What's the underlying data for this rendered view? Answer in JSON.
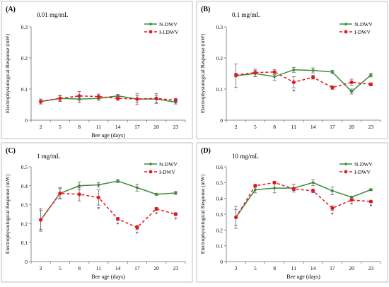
{
  "colors": {
    "n_dwv": "#3d8b37",
    "i_dwv": "#e8141b",
    "axis": "#8c8c8c",
    "frame": "#bfbfbf"
  },
  "chart_data": [
    {
      "type": "line",
      "panel_label": "(A)",
      "title": "0.01 mg/mL",
      "xlabel": "Bee age (days)",
      "ylabel": "Electrophysiological Response (mW)",
      "x": [
        2,
        5,
        8,
        11,
        14,
        17,
        20,
        23
      ],
      "x_ticks": [
        "2",
        "5",
        "8",
        "11",
        "14",
        "17",
        "20",
        "23"
      ],
      "ylim": [
        0,
        0.3
      ],
      "y_ticks": [
        "0",
        "0.1",
        "0.2",
        "0.3"
      ],
      "legend_position": "top-right",
      "series": [
        {
          "name": "N-DWV",
          "style": "solid",
          "color": "#3d8b37",
          "values": [
            0.06,
            0.07,
            0.068,
            0.07,
            0.078,
            0.068,
            0.068,
            0.058
          ],
          "errors": [
            0.008,
            0.01,
            0.012,
            0.006,
            0.005,
            0.01,
            0.012,
            0.006
          ]
        },
        {
          "name": "I-LDWV",
          "style": "dashed",
          "color": "#e8141b",
          "values": [
            0.06,
            0.07,
            0.078,
            0.076,
            0.07,
            0.068,
            0.07,
            0.064
          ],
          "errors": [
            0.008,
            0.008,
            0.014,
            0.008,
            0.006,
            0.018,
            0.016,
            0.006
          ]
        }
      ],
      "significance": []
    },
    {
      "type": "line",
      "panel_label": "(B)",
      "title": "0.1 mg/mL",
      "xlabel": "",
      "ylabel": "Electrophysiological Response (mW)",
      "x": [
        2,
        5,
        8,
        11,
        14,
        17,
        20,
        23
      ],
      "x_ticks": [
        "2",
        "5",
        "8",
        "11",
        "14",
        "17",
        "20",
        "23"
      ],
      "ylim": [
        0,
        0.3
      ],
      "y_ticks": [
        "0",
        "0.1",
        "0.2",
        "0.3"
      ],
      "legend_position": "top-right",
      "series": [
        {
          "name": "N-DWV",
          "style": "solid",
          "color": "#3d8b37",
          "values": [
            0.143,
            0.15,
            0.14,
            0.162,
            0.16,
            0.155,
            0.092,
            0.145
          ],
          "errors": [
            0.038,
            0.01,
            0.012,
            0.008,
            0.008,
            0.005,
            0.008,
            0.006
          ]
        },
        {
          "name": "I-DWV",
          "style": "dashed",
          "color": "#e8141b",
          "values": [
            0.145,
            0.153,
            0.155,
            0.122,
            0.138,
            0.105,
            0.122,
            0.115
          ],
          "errors": [
            0.006,
            0.012,
            0.008,
            0.018,
            0.006,
            0.006,
            0.01,
            0.005
          ]
        }
      ],
      "significance": [
        {
          "x": 11,
          "label": "*"
        }
      ]
    },
    {
      "type": "line",
      "panel_label": "(C)",
      "title": "1 mg/mL",
      "xlabel": "Bee age (days)",
      "ylabel": "Electrophysiological Response (mW)",
      "x": [
        2,
        5,
        8,
        11,
        14,
        17,
        20,
        23
      ],
      "x_ticks": [
        "2",
        "5",
        "8",
        "11",
        "14",
        "17",
        "20",
        "23"
      ],
      "ylim": [
        0,
        0.5
      ],
      "y_ticks": [
        "0",
        "0.1",
        "0.2",
        "0.3",
        "0.4",
        "0.5"
      ],
      "legend_position": "top-right",
      "series": [
        {
          "name": "N-DWV",
          "style": "solid",
          "color": "#3d8b37",
          "values": [
            0.22,
            0.36,
            0.4,
            0.405,
            0.425,
            0.39,
            0.355,
            0.362
          ],
          "errors": [
            0.06,
            0.025,
            0.02,
            0.012,
            0.008,
            0.018,
            0.005,
            0.008
          ]
        },
        {
          "name": "I-DWV",
          "style": "dashed",
          "color": "#e8141b",
          "values": [
            0.22,
            0.36,
            0.355,
            0.338,
            0.225,
            0.18,
            0.278,
            0.25
          ],
          "errors": [
            0.05,
            0.03,
            0.035,
            0.04,
            0.008,
            0.012,
            0.008,
            0.008
          ]
        }
      ],
      "significance": [
        {
          "x": 11,
          "label": "*"
        },
        {
          "x": 14,
          "label": "*"
        },
        {
          "x": 17,
          "label": "*"
        },
        {
          "x": 20,
          "label": "*"
        },
        {
          "x": 23,
          "label": "*"
        }
      ]
    },
    {
      "type": "line",
      "panel_label": "(D)",
      "title": "10 mg/mL",
      "xlabel": "Bee age (days)",
      "ylabel": "Electrophysiological Response (mW)",
      "x": [
        2,
        5,
        8,
        11,
        14,
        17,
        20,
        23
      ],
      "x_ticks": [
        "2",
        "5",
        "8",
        "11",
        "14",
        "17",
        "20",
        "23"
      ],
      "ylim": [
        0,
        0.6
      ],
      "y_ticks": [
        "0",
        "0.1",
        "0.2",
        "0.3",
        "0.4",
        "0.5",
        "0.6"
      ],
      "legend_position": "top-right",
      "series": [
        {
          "name": "N-DWV",
          "style": "solid",
          "color": "#3d8b37",
          "values": [
            0.28,
            0.455,
            0.465,
            0.465,
            0.5,
            0.448,
            0.408,
            0.455
          ],
          "errors": [
            0.07,
            0.02,
            0.03,
            0.025,
            0.02,
            0.025,
            0.005,
            0.006
          ]
        },
        {
          "name": "I-DWV",
          "style": "dashed",
          "color": "#e8141b",
          "values": [
            0.28,
            0.48,
            0.5,
            0.46,
            0.448,
            0.338,
            0.39,
            0.38
          ],
          "errors": [
            0.05,
            0.01,
            0.008,
            0.01,
            0.012,
            0.015,
            0.006,
            0.006
          ]
        }
      ],
      "significance": [
        {
          "x": 17,
          "label": "*"
        },
        {
          "x": 20,
          "label": "*"
        },
        {
          "x": 23,
          "label": "*"
        }
      ]
    }
  ]
}
